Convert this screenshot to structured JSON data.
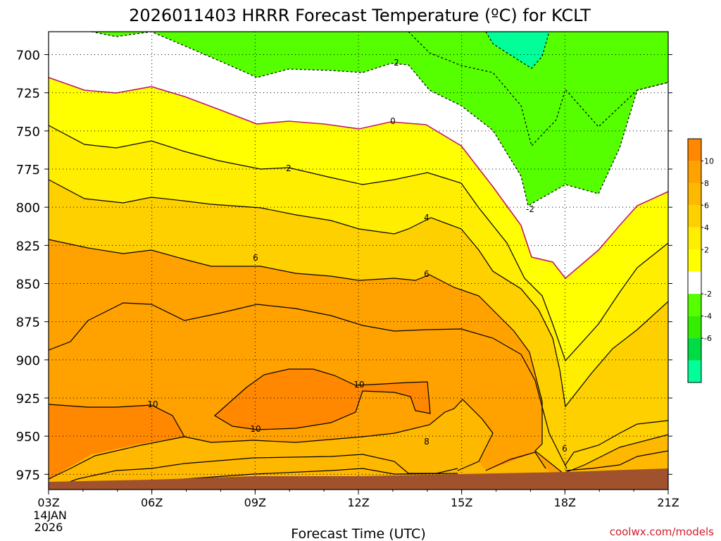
{
  "chart_data": {
    "type": "contour",
    "title": "2026011403 HRRR Forecast Temperature (ºC) for KCLT",
    "xlabel": "Forecast Time (UTC)",
    "x_ticks": [
      "03Z",
      "06Z",
      "09Z",
      "12Z",
      "15Z",
      "18Z",
      "21Z"
    ],
    "x_start_date": [
      "14JAN",
      "2026"
    ],
    "y_ticks": [
      700,
      725,
      750,
      775,
      800,
      825,
      850,
      875,
      900,
      925,
      950,
      975
    ],
    "ylim": [
      985,
      685
    ],
    "grid": true,
    "colorbar": {
      "placement": "right",
      "tick_labels": [
        10,
        8,
        6,
        4,
        2,
        -2,
        -4,
        -6
      ],
      "colors": [
        "#ff8800",
        "#ffa200",
        "#ffb800",
        "#ffd000",
        "#ffee00",
        "#ffff00",
        "#ffffff",
        "#55ff00",
        "#33ee00",
        "#00dd44",
        "#00ff99"
      ]
    },
    "contour_labels": [
      "2",
      "0",
      "2",
      "-2",
      "4",
      "6",
      "6",
      "10",
      "10",
      "10",
      "8",
      "6"
    ],
    "credit": "coolwx.com/models"
  }
}
